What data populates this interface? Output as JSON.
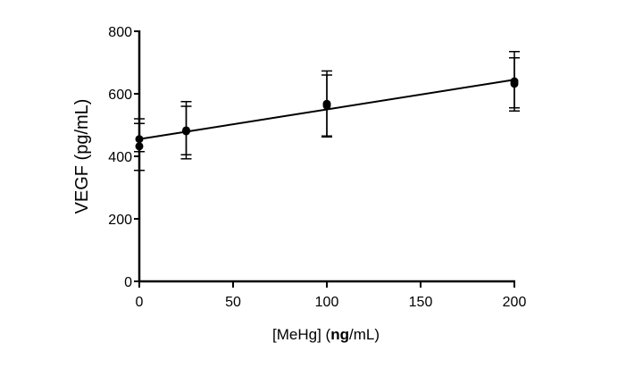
{
  "chart_data": {
    "type": "scatter",
    "xlabel_parts": [
      {
        "text": "[MeHg] (",
        "bold": false
      },
      {
        "text": "ng",
        "bold": true
      },
      {
        "text": "/mL)",
        "bold": false
      }
    ],
    "ylabel": "VEGF (pg/mL)",
    "xlim": [
      0,
      200
    ],
    "ylim": [
      0,
      800
    ],
    "x_ticks": [
      0,
      50,
      100,
      150,
      200
    ],
    "y_ticks": [
      0,
      200,
      400,
      600,
      800
    ],
    "grid": false,
    "points": [
      {
        "x": 0,
        "y": 455,
        "err_low": 415,
        "err_high": 520
      },
      {
        "x": 0,
        "y": 432,
        "err_low": 355,
        "err_high": 505
      },
      {
        "x": 25,
        "y": 483,
        "err_low": 392,
        "err_high": 575
      },
      {
        "x": 25,
        "y": 480,
        "err_low": 405,
        "err_high": 560
      },
      {
        "x": 100,
        "y": 568,
        "err_low": 462,
        "err_high": 673
      },
      {
        "x": 100,
        "y": 562,
        "err_low": 465,
        "err_high": 660
      },
      {
        "x": 200,
        "y": 640,
        "err_low": 545,
        "err_high": 735
      },
      {
        "x": 200,
        "y": 632,
        "err_low": 555,
        "err_high": 715
      }
    ],
    "fit_line": {
      "x": [
        0,
        200
      ],
      "y": [
        455,
        645
      ]
    }
  }
}
